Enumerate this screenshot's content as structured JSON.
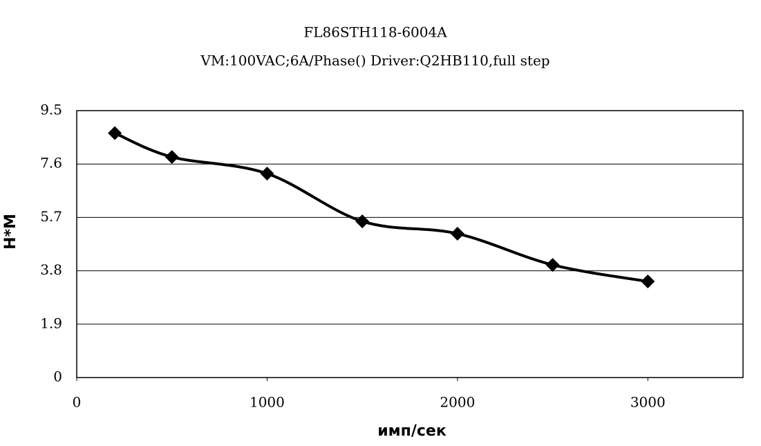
{
  "chart_data": {
    "type": "line",
    "title": "FL86STH118-6004A",
    "subtitle": "VM:100VAC;6A/Phase() Driver:Q2HB110,full step",
    "x_label": "имп/сек",
    "y_label": "Н*М",
    "x": [
      200,
      500,
      1000,
      1500,
      2000,
      2500,
      3000
    ],
    "values": [
      8.7,
      7.85,
      7.26,
      5.56,
      5.12,
      4.01,
      3.42
    ],
    "color": "#000000",
    "xlim": [
      0,
      3500
    ],
    "xticks": [
      0,
      1000,
      2000,
      3000
    ],
    "ylim": [
      0,
      9.5
    ],
    "yticks": [
      0,
      1.9,
      3.8,
      5.7,
      7.6,
      9.5
    ],
    "grid": true
  }
}
